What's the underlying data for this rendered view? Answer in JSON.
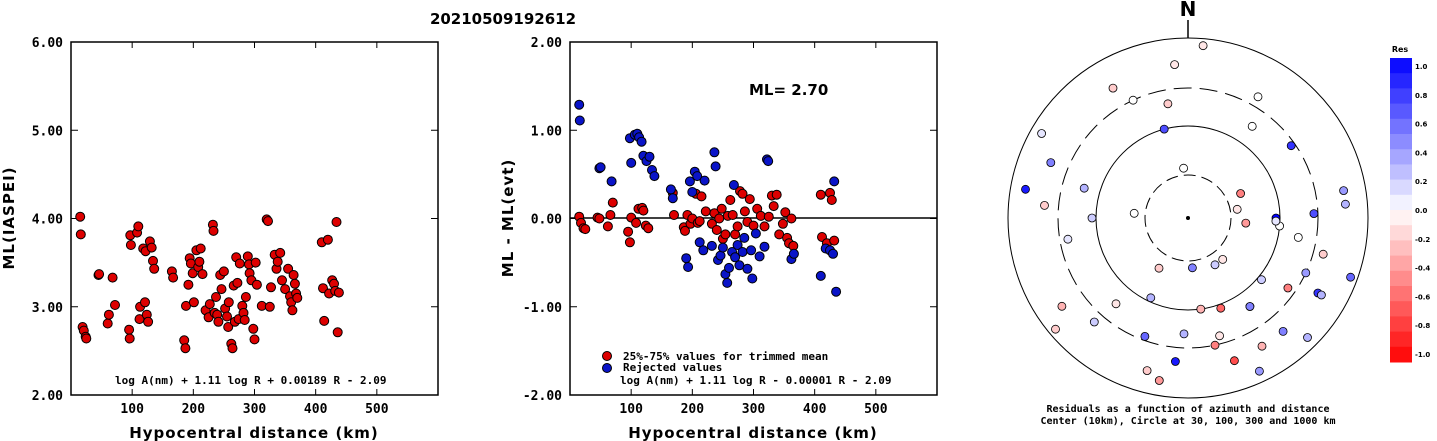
{
  "header": {
    "title": "20210509192612"
  },
  "chart_data": [
    {
      "type": "scatter",
      "xlabel": "Hypocentral distance (km)",
      "ylabel": "ML(IASPEI)",
      "xlim": [
        0,
        600
      ],
      "ylim": [
        2.0,
        6.0
      ],
      "xticks": [
        "100",
        "200",
        "300",
        "400",
        "500"
      ],
      "yticks": [
        "2.00",
        "3.00",
        "4.00",
        "5.00",
        "6.00"
      ],
      "annotation": "log A(nm) + 1.11 log R + 0.00189 R - 2.09",
      "points": [
        [
          15,
          4.02
        ],
        [
          16,
          3.82
        ],
        [
          19,
          2.77
        ],
        [
          21,
          2.73
        ],
        [
          24,
          2.66
        ],
        [
          25,
          2.64
        ],
        [
          45,
          3.36
        ],
        [
          46,
          3.37
        ],
        [
          60,
          2.81
        ],
        [
          62,
          2.91
        ],
        [
          68,
          3.33
        ],
        [
          72,
          3.02
        ],
        [
          95,
          2.74
        ],
        [
          96,
          2.64
        ],
        [
          97,
          3.81
        ],
        [
          98,
          3.7
        ],
        [
          108,
          3.84
        ],
        [
          110,
          3.91
        ],
        [
          112,
          2.86
        ],
        [
          113,
          3.0
        ],
        [
          118,
          3.66
        ],
        [
          121,
          3.05
        ],
        [
          122,
          3.63
        ],
        [
          124,
          2.91
        ],
        [
          126,
          2.83
        ],
        [
          129,
          3.74
        ],
        [
          132,
          3.67
        ],
        [
          134,
          3.52
        ],
        [
          136,
          3.43
        ],
        [
          165,
          3.4
        ],
        [
          167,
          3.33
        ],
        [
          185,
          2.62
        ],
        [
          187,
          2.53
        ],
        [
          188,
          3.01
        ],
        [
          192,
          3.25
        ],
        [
          194,
          3.55
        ],
        [
          196,
          3.49
        ],
        [
          199,
          3.38
        ],
        [
          201,
          3.05
        ],
        [
          205,
          3.64
        ],
        [
          208,
          3.45
        ],
        [
          210,
          3.51
        ],
        [
          212,
          3.66
        ],
        [
          215,
          3.37
        ],
        [
          220,
          2.96
        ],
        [
          225,
          2.88
        ],
        [
          227,
          3.03
        ],
        [
          232,
          3.93
        ],
        [
          233,
          3.86
        ],
        [
          235,
          2.93
        ],
        [
          237,
          3.11
        ],
        [
          239,
          2.91
        ],
        [
          241,
          2.83
        ],
        [
          244,
          3.36
        ],
        [
          246,
          3.2
        ],
        [
          250,
          3.4
        ],
        [
          252,
          2.98
        ],
        [
          255,
          2.89
        ],
        [
          257,
          2.77
        ],
        [
          258,
          3.05
        ],
        [
          262,
          2.58
        ],
        [
          264,
          2.53
        ],
        [
          266,
          3.24
        ],
        [
          268,
          2.83
        ],
        [
          270,
          3.56
        ],
        [
          272,
          3.27
        ],
        [
          274,
          2.86
        ],
        [
          276,
          3.49
        ],
        [
          280,
          3.01
        ],
        [
          282,
          2.93
        ],
        [
          284,
          2.85
        ],
        [
          286,
          3.11
        ],
        [
          289,
          3.57
        ],
        [
          291,
          3.48
        ],
        [
          292,
          3.38
        ],
        [
          295,
          3.3
        ],
        [
          298,
          2.75
        ],
        [
          300,
          2.63
        ],
        [
          302,
          3.5
        ],
        [
          304,
          3.25
        ],
        [
          312,
          3.01
        ],
        [
          320,
          3.99
        ],
        [
          322,
          3.97
        ],
        [
          325,
          3.0
        ],
        [
          327,
          3.22
        ],
        [
          333,
          3.59
        ],
        [
          336,
          3.43
        ],
        [
          338,
          3.51
        ],
        [
          342,
          3.61
        ],
        [
          345,
          3.3
        ],
        [
          350,
          3.2
        ],
        [
          355,
          3.43
        ],
        [
          358,
          3.12
        ],
        [
          360,
          3.05
        ],
        [
          362,
          2.96
        ],
        [
          364,
          3.36
        ],
        [
          366,
          3.26
        ],
        [
          368,
          3.15
        ],
        [
          370,
          3.1
        ],
        [
          410,
          3.73
        ],
        [
          412,
          3.21
        ],
        [
          414,
          2.84
        ],
        [
          420,
          3.76
        ],
        [
          422,
          3.15
        ],
        [
          427,
          3.3
        ],
        [
          430,
          3.26
        ],
        [
          432,
          3.18
        ],
        [
          434,
          3.96
        ],
        [
          436,
          2.71
        ],
        [
          438,
          3.16
        ]
      ]
    },
    {
      "type": "scatter",
      "xlabel": "Hypocentral distance (km)",
      "ylabel": "ML - ML(evt)",
      "xlim": [
        0,
        600
      ],
      "ylim": [
        -2.0,
        2.0
      ],
      "xticks": [
        "100",
        "200",
        "300",
        "400",
        "500"
      ],
      "yticks": [
        "-2.00",
        "-1.00",
        "0.00",
        "1.00",
        "2.00"
      ],
      "ml_label": "ML= 2.70",
      "legend": [
        "25%-75% values for trimmed mean",
        "Rejected values"
      ],
      "annotation": "log A(nm) + 1.11 log R - 0.00001 R - 2.09",
      "colors": {
        "trimmed": "#dd0000",
        "rejected": "#0a14c8"
      },
      "trimmed_points": [
        [
          15,
          0.02
        ],
        [
          18,
          -0.05
        ],
        [
          22,
          -0.11
        ],
        [
          25,
          -0.12
        ],
        [
          45,
          0.01
        ],
        [
          48,
          0.0
        ],
        [
          62,
          -0.09
        ],
        [
          66,
          0.04
        ],
        [
          70,
          0.18
        ],
        [
          95,
          -0.15
        ],
        [
          98,
          -0.27
        ],
        [
          100,
          0.01
        ],
        [
          108,
          -0.05
        ],
        [
          112,
          0.11
        ],
        [
          118,
          0.12
        ],
        [
          120,
          0.09
        ],
        [
          124,
          -0.08
        ],
        [
          128,
          -0.11
        ],
        [
          168,
          0.29
        ],
        [
          170,
          0.04
        ],
        [
          186,
          -0.1
        ],
        [
          188,
          -0.14
        ],
        [
          192,
          0.04
        ],
        [
          197,
          -0.06
        ],
        [
          200,
          0.0
        ],
        [
          206,
          0.28
        ],
        [
          209,
          -0.05
        ],
        [
          212,
          -0.03
        ],
        [
          215,
          0.25
        ],
        [
          222,
          0.08
        ],
        [
          232,
          -0.06
        ],
        [
          236,
          0.06
        ],
        [
          240,
          -0.13
        ],
        [
          244,
          0.0
        ],
        [
          248,
          0.11
        ],
        [
          250,
          -0.23
        ],
        [
          254,
          -0.18
        ],
        [
          258,
          0.03
        ],
        [
          262,
          0.21
        ],
        [
          266,
          0.04
        ],
        [
          270,
          -0.18
        ],
        [
          274,
          -0.09
        ],
        [
          278,
          0.31
        ],
        [
          282,
          0.28
        ],
        [
          286,
          0.08
        ],
        [
          290,
          -0.04
        ],
        [
          294,
          0.22
        ],
        [
          300,
          -0.08
        ],
        [
          306,
          0.11
        ],
        [
          312,
          0.03
        ],
        [
          318,
          -0.09
        ],
        [
          325,
          0.02
        ],
        [
          330,
          0.26
        ],
        [
          333,
          0.14
        ],
        [
          338,
          0.27
        ],
        [
          342,
          -0.18
        ],
        [
          348,
          -0.06
        ],
        [
          352,
          0.07
        ],
        [
          355,
          -0.22
        ],
        [
          358,
          -0.28
        ],
        [
          362,
          0.0
        ],
        [
          365,
          -0.31
        ],
        [
          410,
          0.27
        ],
        [
          412,
          -0.21
        ],
        [
          420,
          -0.28
        ],
        [
          425,
          0.29
        ],
        [
          428,
          0.21
        ],
        [
          432,
          -0.25
        ]
      ],
      "rejected_points": [
        [
          15,
          1.29
        ],
        [
          16,
          1.11
        ],
        [
          48,
          0.57
        ],
        [
          50,
          0.58
        ],
        [
          68,
          0.42
        ],
        [
          98,
          0.91
        ],
        [
          100,
          0.63
        ],
        [
          106,
          0.95
        ],
        [
          110,
          0.96
        ],
        [
          113,
          0.92
        ],
        [
          117,
          0.87
        ],
        [
          120,
          0.71
        ],
        [
          125,
          0.65
        ],
        [
          130,
          0.7
        ],
        [
          134,
          0.55
        ],
        [
          138,
          0.48
        ],
        [
          165,
          0.33
        ],
        [
          168,
          0.23
        ],
        [
          190,
          -0.45
        ],
        [
          193,
          -0.55
        ],
        [
          196,
          0.42
        ],
        [
          200,
          0.3
        ],
        [
          204,
          0.53
        ],
        [
          208,
          0.48
        ],
        [
          212,
          -0.27
        ],
        [
          218,
          -0.36
        ],
        [
          220,
          0.43
        ],
        [
          232,
          -0.31
        ],
        [
          236,
          0.75
        ],
        [
          238,
          0.59
        ],
        [
          242,
          -0.47
        ],
        [
          246,
          -0.42
        ],
        [
          250,
          -0.33
        ],
        [
          254,
          -0.63
        ],
        [
          257,
          -0.73
        ],
        [
          260,
          -0.56
        ],
        [
          265,
          -0.38
        ],
        [
          268,
          0.38
        ],
        [
          270,
          -0.44
        ],
        [
          274,
          -0.3
        ],
        [
          277,
          -0.53
        ],
        [
          282,
          -0.38
        ],
        [
          285,
          -0.22
        ],
        [
          290,
          -0.57
        ],
        [
          296,
          -0.36
        ],
        [
          298,
          -0.68
        ],
        [
          304,
          -0.17
        ],
        [
          310,
          -0.43
        ],
        [
          318,
          -0.32
        ],
        [
          322,
          0.67
        ],
        [
          324,
          0.65
        ],
        [
          362,
          -0.46
        ],
        [
          366,
          -0.4
        ],
        [
          410,
          -0.65
        ],
        [
          418,
          -0.34
        ],
        [
          425,
          -0.36
        ],
        [
          430,
          -0.4
        ],
        [
          432,
          0.42
        ],
        [
          435,
          -0.83
        ]
      ]
    },
    {
      "type": "polar",
      "north_label": "N",
      "caption_line1": "Residuals as a function of azimuth and distance",
      "caption_line2": "Center (10km), Circle at 30, 100, 300 and 1000 km",
      "colorbar": {
        "title": "Res",
        "labels": [
          "1.0",
          "0.8",
          "0.6",
          "0.4",
          "0.2",
          "0.0",
          "-0.2",
          "-0.4",
          "-0.6",
          "-0.8",
          "-1.0"
        ],
        "max_color": "#0000ff",
        "min_color": "#ff0000"
      },
      "station_points": [
        [
          80,
          -0.1
        ],
        [
          95,
          0.0
        ],
        [
          115,
          0.4
        ],
        [
          120,
          0.8
        ],
        [
          135,
          0.3
        ],
        [
          140,
          0.5
        ],
        [
          145,
          0.9
        ],
        [
          150,
          0.2
        ],
        [
          160,
          -0.6
        ],
        [
          165,
          -0.1
        ],
        [
          -5,
          -0.1
        ],
        [
          5,
          -0.1
        ],
        [
          30,
          0.0
        ],
        [
          35,
          0.0
        ],
        [
          65,
          -0.5
        ],
        [
          90,
          1.0
        ],
        [
          55,
          0.8
        ],
        [
          80,
          0.4
        ],
        [
          -80,
          0.9
        ],
        [
          -85,
          -0.2
        ],
        [
          -10,
          -0.2
        ],
        [
          -5,
          0.0
        ],
        [
          -15,
          0.7
        ],
        [
          -25,
          0.0
        ],
        [
          -30,
          -0.2
        ],
        [
          -60,
          0.1
        ],
        [
          -68,
          0.5
        ],
        [
          -74,
          0.3
        ],
        [
          -85,
          0.0
        ],
        [
          -90,
          0.2
        ],
        [
          -100,
          0.1
        ],
        [
          -125,
          -0.3
        ],
        [
          -130,
          -0.2
        ],
        [
          -138,
          0.2
        ],
        [
          -140,
          -0.1
        ],
        [
          -150,
          -0.2
        ],
        [
          -155,
          0.3
        ],
        [
          -160,
          0.6
        ],
        [
          -165,
          -0.2
        ],
        [
          -170,
          -0.4
        ],
        [
          -175,
          0.9
        ],
        [
          -178,
          0.3
        ],
        [
          175,
          0.5
        ],
        [
          172,
          -0.3
        ],
        [
          168,
          -0.5
        ],
        [
          162,
          -0.7
        ],
        [
          155,
          0.4
        ],
        [
          150,
          -0.3
        ],
        [
          145,
          0.5
        ],
        [
          140,
          -0.1
        ],
        [
          130,
          0.2
        ],
        [
          125,
          -0.5
        ],
        [
          120,
          0.3
        ],
        [
          110,
          0.6
        ],
        [
          105,
          -0.2
        ],
        [
          100,
          0.0
        ],
        [
          95,
          -0.4
        ],
        [
          92,
          0.1
        ],
        [
          88,
          0.7
        ],
        [
          85,
          0.3
        ]
      ]
    }
  ]
}
